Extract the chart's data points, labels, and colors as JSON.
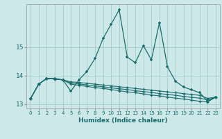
{
  "xlabel": "Humidex (Indice chaleur)",
  "bg_color": "#cce8e8",
  "grid_color": "#a8d0d0",
  "line_color": "#1a6b6b",
  "x": [
    0,
    1,
    2,
    3,
    4,
    5,
    6,
    7,
    8,
    9,
    10,
    11,
    12,
    13,
    14,
    15,
    16,
    17,
    18,
    19,
    20,
    21,
    22,
    23
  ],
  "main_y": [
    13.2,
    13.7,
    13.9,
    13.9,
    13.85,
    13.45,
    13.85,
    14.15,
    14.6,
    15.3,
    15.8,
    16.3,
    14.65,
    14.45,
    15.05,
    14.55,
    15.85,
    14.3,
    13.8,
    13.6,
    13.5,
    13.4,
    13.1,
    13.25
  ],
  "reg1_y": [
    13.2,
    13.7,
    13.9,
    13.88,
    13.85,
    13.78,
    13.76,
    13.73,
    13.7,
    13.67,
    13.64,
    13.61,
    13.58,
    13.55,
    13.52,
    13.49,
    13.46,
    13.43,
    13.4,
    13.37,
    13.34,
    13.31,
    13.2,
    13.25
  ],
  "reg2_y": [
    13.2,
    13.7,
    13.9,
    13.88,
    13.85,
    13.74,
    13.71,
    13.67,
    13.64,
    13.61,
    13.57,
    13.54,
    13.51,
    13.47,
    13.44,
    13.41,
    13.37,
    13.34,
    13.31,
    13.27,
    13.24,
    13.21,
    13.15,
    13.25
  ],
  "reg3_y": [
    13.2,
    13.7,
    13.9,
    13.88,
    13.85,
    13.7,
    13.66,
    13.62,
    13.58,
    13.55,
    13.51,
    13.47,
    13.43,
    13.4,
    13.36,
    13.32,
    13.29,
    13.25,
    13.21,
    13.18,
    13.14,
    13.1,
    13.08,
    13.25
  ],
  "ylim": [
    12.85,
    16.5
  ],
  "yticks": [
    13,
    14,
    15
  ],
  "xlim": [
    -0.5,
    23.5
  ]
}
